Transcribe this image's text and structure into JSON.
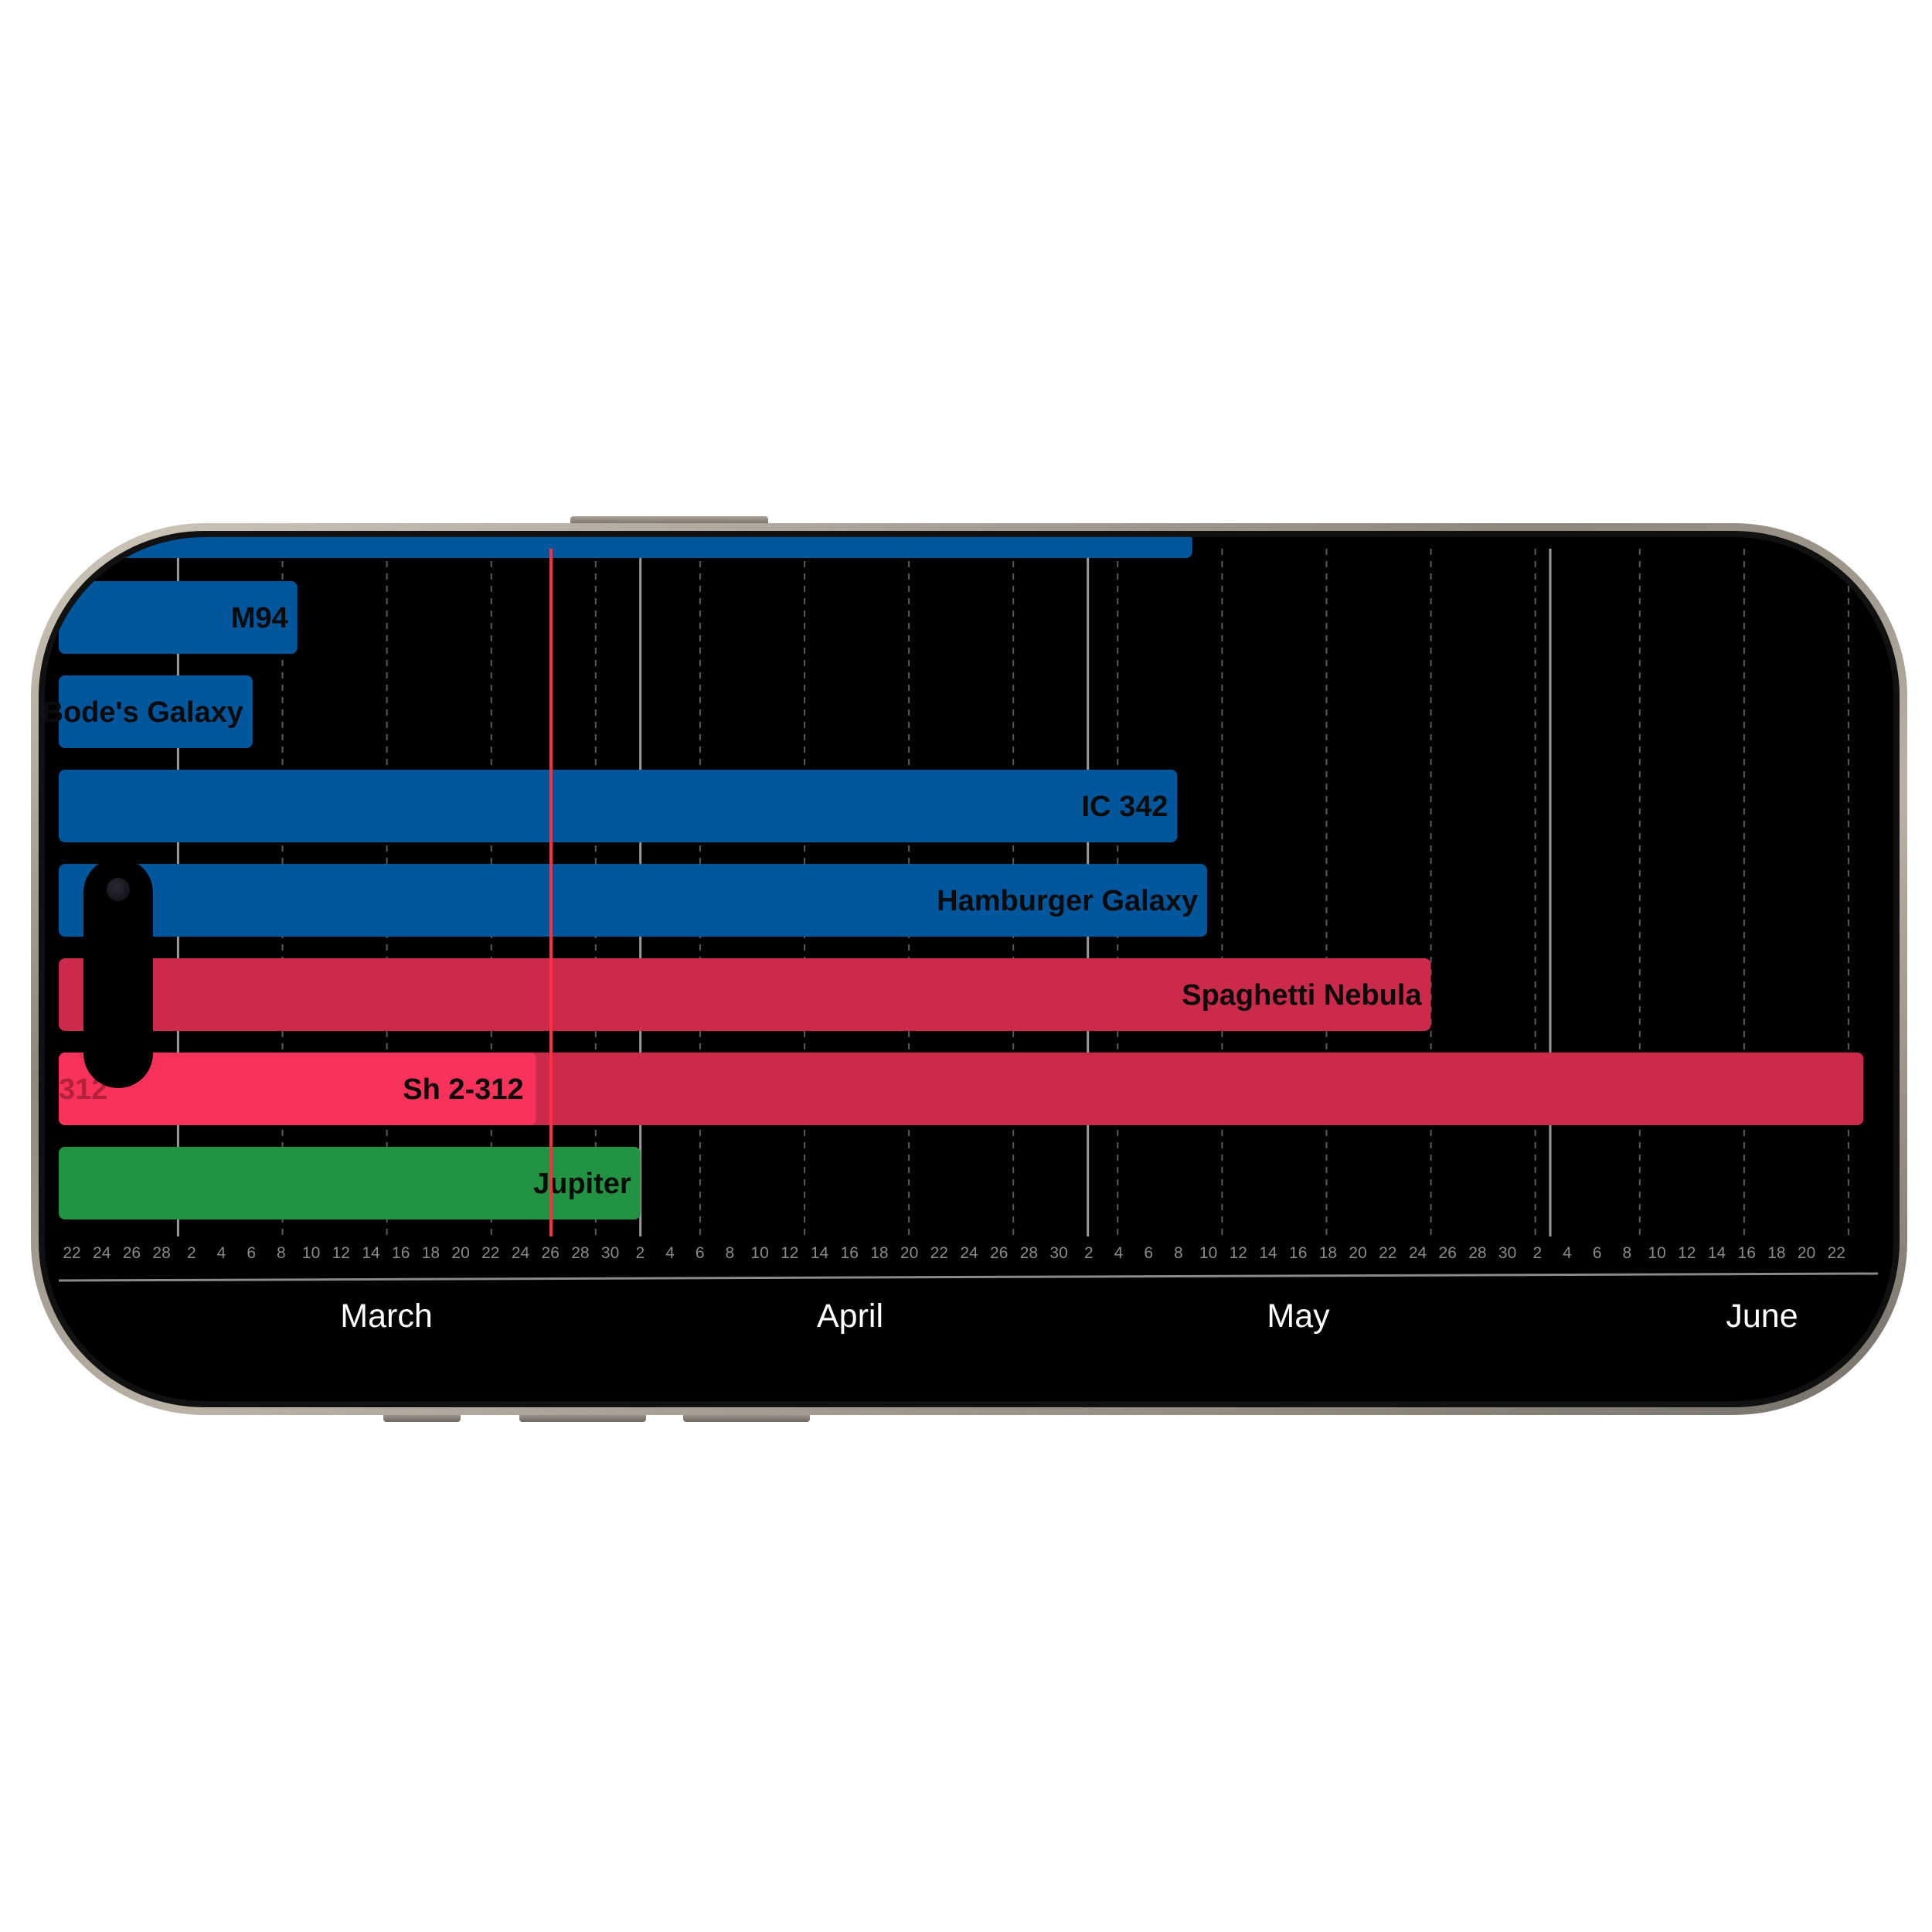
{
  "device": {
    "frame_color": "#a39d91",
    "screen_color": "#000000"
  },
  "timeline": {
    "type": "gantt",
    "today_date": "Mar 26",
    "colors": {
      "galaxy": "#02569b",
      "nebula": "#cb2a4b",
      "nebula_highlight": "#f8325a",
      "planet": "#229243",
      "today_line": "#ff3040",
      "month_line": "#9a9a9a",
      "week_line": "#5a5a5a"
    },
    "months": [
      "March",
      "April",
      "May",
      "June"
    ],
    "day_ticks": [
      "22",
      "24",
      "26",
      "28",
      "2",
      "4",
      "6",
      "8",
      "10",
      "12",
      "14",
      "16",
      "18",
      "20",
      "22",
      "24",
      "26",
      "28",
      "30",
      "2",
      "4",
      "6",
      "8",
      "10",
      "12",
      "14",
      "16",
      "18",
      "20",
      "22",
      "24",
      "26",
      "28",
      "30",
      "2",
      "4",
      "6",
      "8",
      "10",
      "12",
      "14",
      "16",
      "18",
      "20",
      "22",
      "24",
      "26",
      "28",
      "30",
      "2",
      "4",
      "6",
      "8",
      "10",
      "12",
      "14",
      "16",
      "18",
      "20",
      "22"
    ],
    "rows": [
      {
        "label": "M94",
        "category": "galaxy",
        "end": "Mar 9"
      },
      {
        "label": "Bode's Galaxy",
        "category": "galaxy",
        "end": "Mar 6"
      },
      {
        "label": "IC 342",
        "category": "galaxy",
        "end": "May 7"
      },
      {
        "label": "Hamburger Galaxy",
        "category": "galaxy",
        "end": "May 9"
      },
      {
        "label": "Spaghetti Nebula",
        "category": "nebula",
        "end": "May 24"
      },
      {
        "label": "Sh 2-312",
        "category": "nebula",
        "end": "Jun 22",
        "highlight_end": "Mar 25",
        "ghost_label": "312"
      },
      {
        "label": "Jupiter",
        "category": "planet",
        "end": "Apr 1"
      }
    ],
    "top_row": {
      "category": "galaxy",
      "end": "May 8"
    }
  }
}
